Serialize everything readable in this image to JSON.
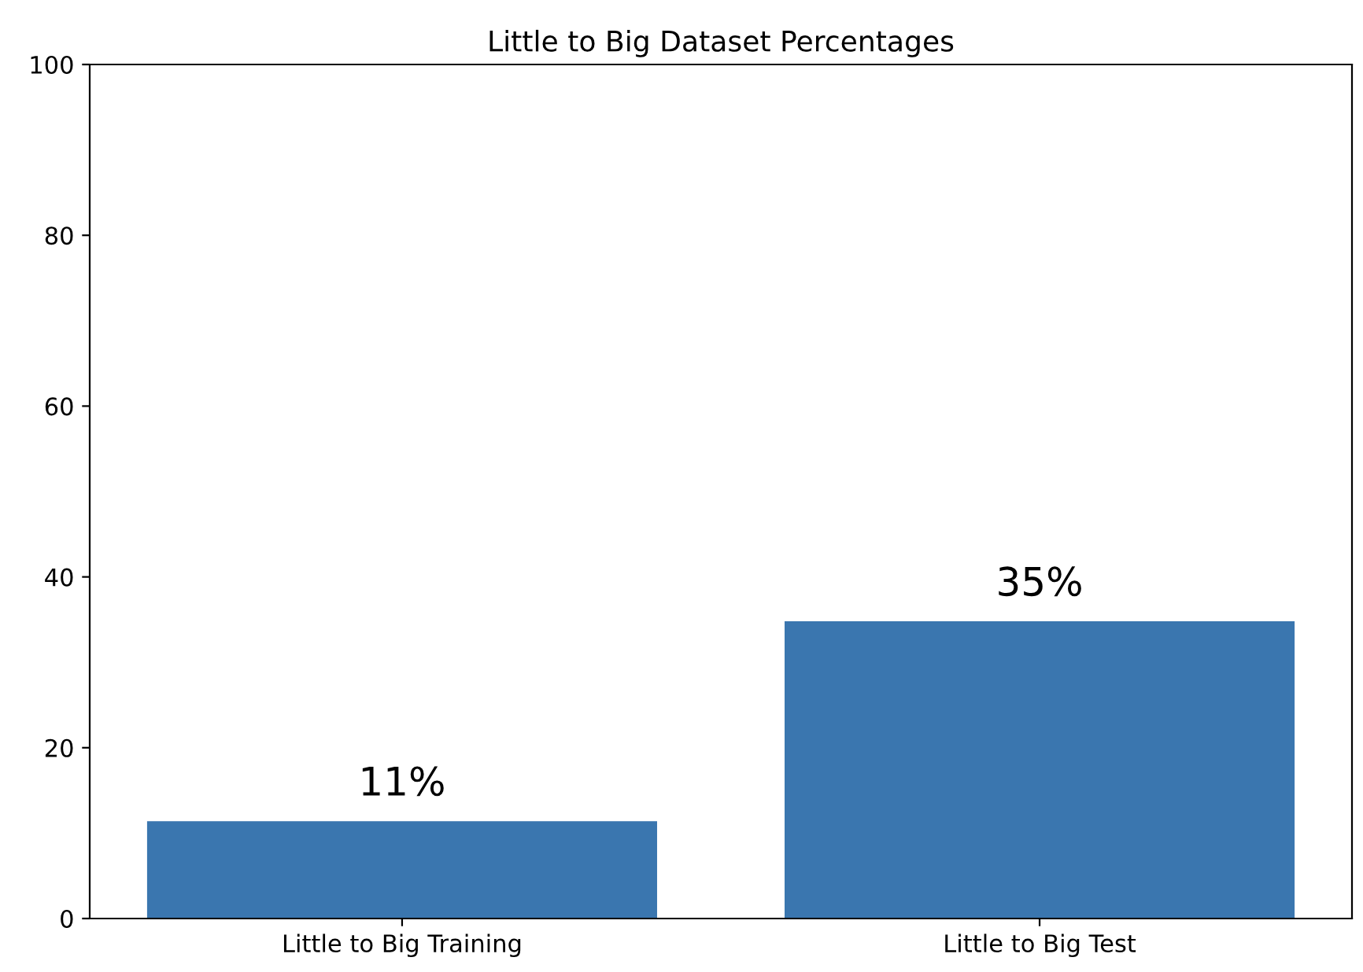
{
  "chart_data": {
    "type": "bar",
    "title": "Little to Big Dataset Percentages",
    "categories": [
      "Little to Big Training",
      "Little to Big Test"
    ],
    "values": [
      11.4,
      34.8
    ],
    "value_labels": [
      "11%",
      "35%"
    ],
    "color": "#3a76af",
    "ylim": [
      0,
      100
    ],
    "yticks": [
      0,
      20,
      40,
      60,
      80,
      100
    ],
    "grid": false
  }
}
